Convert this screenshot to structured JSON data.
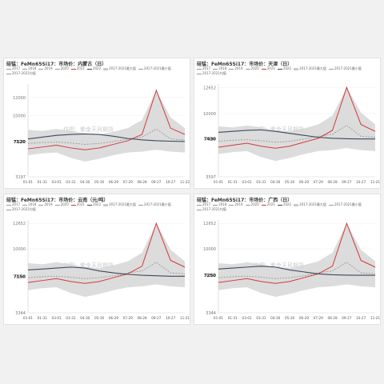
{
  "colors": {
    "y2021": "#d23a3a",
    "y2022": "#3b4a5a",
    "band": "#d6d6d6",
    "avg": "#9a9a9a"
  },
  "legend": [
    "2017",
    "2018",
    "2019",
    "2020",
    "2021",
    "2022",
    "2017-2021最大值",
    "2017-2021最小值",
    "2017-2021均值"
  ],
  "watermark": "作图：紫金天风期货",
  "chart_data": [
    {
      "type": "line",
      "title": "硅锰：FeMn65Si17：市场价：内蒙古（日）",
      "x_ticks": [
        "01-01",
        "01-31",
        "03-01",
        "03-31",
        "04-30",
        "05-30",
        "06-29",
        "07-29",
        "08-28",
        "09-27",
        "10-27",
        "11-22"
      ],
      "y_ticks": [
        3197,
        7120,
        10000,
        12000
      ],
      "ylim": [
        3197,
        13500
      ],
      "series": [
        {
          "name": "2022",
          "values": [
            7400,
            7600,
            7800,
            7900,
            7950,
            7900,
            7700,
            7450,
            7300,
            7200,
            7150,
            7120
          ]
        },
        {
          "name": "2021",
          "values": [
            6300,
            6500,
            6700,
            6400,
            6200,
            6400,
            6800,
            7200,
            7900,
            12800,
            8600,
            7900
          ]
        },
        {
          "name": "2017-2021均值",
          "values": [
            6900,
            7000,
            7050,
            6950,
            6800,
            6900,
            7100,
            7400,
            7600,
            8500,
            7400,
            7300
          ]
        },
        {
          "name": "2017-2021最大值",
          "values": [
            8400,
            8300,
            8500,
            8300,
            8000,
            7900,
            8200,
            8600,
            9500,
            12800,
            9800,
            8600
          ]
        },
        {
          "name": "2017-2021最小值",
          "values": [
            5600,
            5800,
            5900,
            5300,
            4900,
            5200,
            5600,
            5900,
            6000,
            6200,
            6000,
            5900
          ]
        }
      ],
      "annotation": "7120"
    },
    {
      "type": "line",
      "title": "硅锰：FeMn65Si17：市场价：天津（日）",
      "x_ticks": [
        "01-01",
        "01-31",
        "03-01",
        "03-31",
        "04-30",
        "05-30",
        "06-29",
        "07-29",
        "08-28",
        "09-27",
        "10-27",
        "11-21"
      ],
      "y_ticks": [
        3597,
        7430,
        10000,
        12652
      ],
      "ylim": [
        3597,
        13000
      ],
      "series": [
        {
          "name": "2022",
          "values": [
            8100,
            8200,
            8300,
            8350,
            8200,
            8000,
            7800,
            7600,
            7500,
            7450,
            7430,
            7430
          ]
        },
        {
          "name": "2021",
          "values": [
            6600,
            6800,
            7000,
            6700,
            6500,
            6700,
            7100,
            7500,
            8300,
            12652,
            8900,
            8200
          ]
        },
        {
          "name": "2017-2021均值",
          "values": [
            7200,
            7300,
            7350,
            7250,
            7100,
            7200,
            7400,
            7700,
            7900,
            8800,
            7700,
            7600
          ]
        },
        {
          "name": "2017-2021最大值",
          "values": [
            8700,
            8600,
            8800,
            8600,
            8300,
            8200,
            8500,
            8900,
            9800,
            12652,
            10100,
            8900
          ]
        },
        {
          "name": "2017-2021最小值",
          "values": [
            5900,
            6100,
            6200,
            5600,
            5200,
            5500,
            5900,
            6200,
            6300,
            6500,
            6300,
            6200
          ]
        }
      ],
      "annotation": "7430"
    },
    {
      "type": "line",
      "title": "硅锰：FeMn65Si17：市场价：云南（元/吨）",
      "x_ticks": [
        "01-01",
        "01-31",
        "03-01",
        "03-31",
        "04-30",
        "05-30",
        "06-29",
        "07-29",
        "08-28",
        "09-27",
        "10-27",
        "11-21"
      ],
      "y_ticks": [
        3344,
        7150,
        10000,
        12652
      ],
      "ylim": [
        3344,
        13000
      ],
      "series": [
        {
          "name": "2022",
          "values": [
            7800,
            7900,
            8000,
            8100,
            8000,
            7700,
            7500,
            7350,
            7250,
            7200,
            7150,
            7150
          ]
        },
        {
          "name": "2021",
          "values": [
            6500,
            6700,
            6900,
            6600,
            6400,
            6600,
            7000,
            7400,
            8200,
            12652,
            8800,
            8100
          ]
        },
        {
          "name": "2017-2021均值",
          "values": [
            7000,
            7100,
            7150,
            7050,
            6900,
            7000,
            7200,
            7500,
            7700,
            8600,
            7500,
            7400
          ]
        },
        {
          "name": "2017-2021最大值",
          "values": [
            8500,
            8400,
            8600,
            8400,
            8100,
            8000,
            8300,
            8700,
            9600,
            12652,
            9900,
            8700
          ]
        },
        {
          "name": "2017-2021最小值",
          "values": [
            5700,
            5900,
            6000,
            5400,
            5000,
            5300,
            5700,
            6000,
            6100,
            6300,
            6100,
            6000
          ]
        }
      ],
      "annotation": "7150"
    },
    {
      "type": "line",
      "title": "硅锰：FeMn65Si17：市场价：广西（日）",
      "x_ticks": [
        "01-01",
        "01-31",
        "03-01",
        "03-31",
        "04-30",
        "05-30",
        "06-29",
        "07-29",
        "08-28",
        "09-27",
        "10-27",
        "11-21"
      ],
      "y_ticks": [
        3344,
        7250,
        10000,
        12652
      ],
      "ylim": [
        3344,
        13000
      ],
      "series": [
        {
          "name": "2022",
          "values": [
            7900,
            8000,
            8100,
            8200,
            8100,
            7800,
            7600,
            7400,
            7300,
            7260,
            7250,
            7250
          ]
        },
        {
          "name": "2021",
          "values": [
            6500,
            6700,
            6900,
            6600,
            6400,
            6600,
            7000,
            7400,
            8200,
            12652,
            8800,
            8100
          ]
        },
        {
          "name": "2017-2021均值",
          "values": [
            7000,
            7100,
            7150,
            7050,
            6900,
            7000,
            7200,
            7500,
            7700,
            8600,
            7500,
            7400
          ]
        },
        {
          "name": "2017-2021最大值",
          "values": [
            8500,
            8400,
            8600,
            8400,
            8100,
            8000,
            8300,
            8700,
            9600,
            12652,
            9900,
            8700
          ]
        },
        {
          "name": "2017-2021最小值",
          "values": [
            5700,
            5900,
            6000,
            5400,
            5000,
            5300,
            5700,
            6000,
            6100,
            6300,
            6100,
            6000
          ]
        }
      ],
      "annotation": "7250"
    }
  ]
}
